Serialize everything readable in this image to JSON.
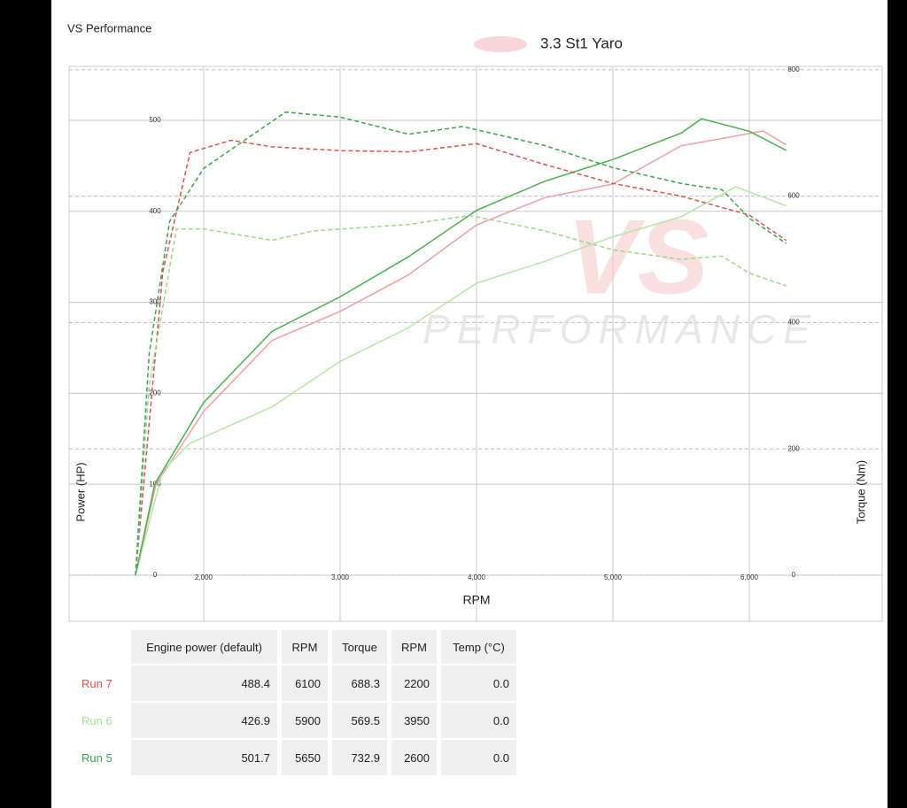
{
  "header": {
    "brand": "VS Performance",
    "title": "3.3 St1 Yaro"
  },
  "watermark": {
    "logo": "VS",
    "text": "PERFORMANCE"
  },
  "chart_data": {
    "type": "line",
    "xlabel": "RPM",
    "ylabel": "Power (HP)",
    "y2label": "Torque (Nm)",
    "xlim": [
      1013,
      6974
    ],
    "ylim": [
      -50.6,
      559.3
    ],
    "y2lim": [
      -72.8,
      805.3
    ],
    "xticks": [
      {
        "value": 2000,
        "label": "2,000"
      },
      {
        "value": 3000,
        "label": "3,000"
      },
      {
        "value": 4000,
        "label": "4,000"
      },
      {
        "value": 5000,
        "label": "5,000"
      },
      {
        "value": 6000,
        "label": "6,000"
      }
    ],
    "yticks": [
      0,
      100,
      200,
      300,
      400,
      500
    ],
    "y2ticks": [
      0,
      200,
      400,
      600,
      800
    ],
    "grid": true,
    "series": [
      {
        "color": "#f0a0a0",
        "axis": "y",
        "dashed": false,
        "x": [
          1500,
          1650,
          2000,
          2500,
          3000,
          3500,
          4000,
          4500,
          5000,
          5500,
          5800,
          6100,
          6270
        ],
        "values": [
          0,
          100,
          180,
          258,
          290,
          330,
          385,
          415,
          430,
          472,
          480,
          488.4,
          473
        ]
      },
      {
        "color": "#b7e4a8",
        "axis": "y",
        "dashed": false,
        "x": [
          1500,
          1700,
          1900,
          2500,
          3000,
          3500,
          4000,
          4500,
          5000,
          5500,
          5900,
          6270
        ],
        "values": [
          0,
          115,
          145,
          185,
          235,
          272,
          321,
          345,
          372,
          394,
          426.9,
          406
        ]
      },
      {
        "color": "#4caf50",
        "axis": "y",
        "dashed": false,
        "x": [
          1500,
          1640,
          2000,
          2500,
          3000,
          3500,
          4000,
          4500,
          5000,
          5500,
          5650,
          6000,
          6270
        ],
        "values": [
          0,
          100,
          190,
          268,
          306,
          350,
          401,
          433,
          457,
          486,
          501.7,
          488,
          467
        ]
      },
      {
        "color": "#d9534f",
        "axis": "y2",
        "dashed": true,
        "x": [
          1500,
          1700,
          1900,
          2200,
          2500,
          3000,
          3500,
          4000,
          4500,
          5000,
          5500,
          6000,
          6270
        ],
        "values": [
          0,
          480,
          669,
          688.3,
          678,
          672,
          670,
          683,
          650,
          620,
          600,
          570,
          530
        ]
      },
      {
        "color": "#9cd68a",
        "axis": "y2",
        "dashed": true,
        "x": [
          1500,
          1600,
          1800,
          2000,
          2500,
          2800,
          3500,
          3950,
          4500,
          5000,
          5500,
          5800,
          6000,
          6270
        ],
        "values": [
          0,
          300,
          548,
          548,
          530,
          545,
          555,
          569.5,
          545,
          515,
          500,
          505,
          478,
          458
        ]
      },
      {
        "color": "#3fa34d",
        "axis": "y2",
        "dashed": true,
        "x": [
          1500,
          1600,
          1750,
          2000,
          2600,
          3000,
          3500,
          3900,
          4500,
          5000,
          5500,
          5800,
          6000,
          6270
        ],
        "values": [
          0,
          350,
          560,
          644,
          732.9,
          725,
          698,
          710,
          680,
          645,
          620,
          610,
          565,
          525
        ]
      }
    ]
  },
  "table": {
    "header": [
      "Engine power (default)",
      "RPM",
      "Torque",
      "RPM",
      "Temp (°C)"
    ],
    "rows": [
      {
        "label": "Run 7",
        "color": "#d9534f",
        "cells": [
          "488.4",
          "6100",
          "688.3",
          "2200",
          "0.0"
        ]
      },
      {
        "label": "Run 6",
        "color": "#a6dd96",
        "cells": [
          "426.9",
          "5900",
          "569.5",
          "3950",
          "0.0"
        ]
      },
      {
        "label": "Run 5",
        "color": "#3fa34d",
        "cells": [
          "501.7",
          "5650",
          "732.9",
          "2600",
          "0.0"
        ]
      }
    ]
  }
}
